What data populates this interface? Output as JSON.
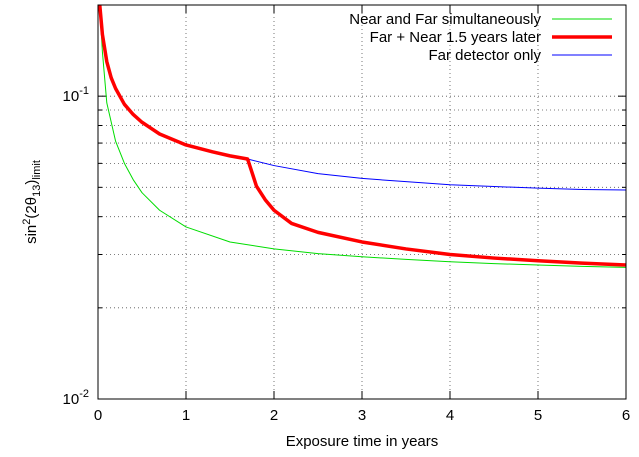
{
  "chart_data": {
    "type": "line",
    "title": "",
    "xlabel": "Exposure time in years",
    "ylabel": {
      "base": "sin",
      "sup1": "2",
      "mid": "(2θ",
      "sub1": "13",
      "close": ")",
      "sub2": "limit"
    },
    "xlim": [
      0,
      6
    ],
    "ylim": [
      0.01,
      0.2
    ],
    "yscale": "log",
    "grid": true,
    "legend_position": "top-right",
    "x_ticks": [
      "0",
      "1",
      "2",
      "3",
      "4",
      "5",
      "6"
    ],
    "y_ticks": [
      {
        "value": 0.1,
        "base": "10",
        "exp": "-1"
      },
      {
        "value": 0.01,
        "base": "10",
        "exp": "-2"
      }
    ],
    "series": [
      {
        "name": "Near and Far simultaneously",
        "color": "#00dd00",
        "points": [
          [
            0.02,
            0.2
          ],
          [
            0.05,
            0.14
          ],
          [
            0.1,
            0.095
          ],
          [
            0.2,
            0.071
          ],
          [
            0.3,
            0.06
          ],
          [
            0.4,
            0.053
          ],
          [
            0.5,
            0.048
          ],
          [
            0.7,
            0.042
          ],
          [
            1.0,
            0.037
          ],
          [
            1.5,
            0.033
          ],
          [
            2.0,
            0.0313
          ],
          [
            2.5,
            0.0302
          ],
          [
            3.0,
            0.0295
          ],
          [
            3.5,
            0.0289
          ],
          [
            4.0,
            0.0284
          ],
          [
            4.5,
            0.028
          ],
          [
            5.0,
            0.0277
          ],
          [
            5.5,
            0.0274
          ],
          [
            6.0,
            0.0272
          ]
        ]
      },
      {
        "name": "Far + Near 1.5 years later",
        "color": "#ff0000",
        "points": [
          [
            0.02,
            0.2
          ],
          [
            0.05,
            0.16
          ],
          [
            0.1,
            0.13
          ],
          [
            0.15,
            0.115
          ],
          [
            0.2,
            0.106
          ],
          [
            0.3,
            0.094
          ],
          [
            0.4,
            0.087
          ],
          [
            0.5,
            0.082
          ],
          [
            0.7,
            0.075
          ],
          [
            1.0,
            0.069
          ],
          [
            1.3,
            0.0655
          ],
          [
            1.5,
            0.0635
          ],
          [
            1.7,
            0.062
          ],
          [
            1.75,
            0.056
          ],
          [
            1.8,
            0.0505
          ],
          [
            1.9,
            0.0455
          ],
          [
            2.0,
            0.042
          ],
          [
            2.2,
            0.038
          ],
          [
            2.5,
            0.0355
          ],
          [
            3.0,
            0.033
          ],
          [
            3.5,
            0.0313
          ],
          [
            4.0,
            0.03
          ],
          [
            4.5,
            0.0292
          ],
          [
            5.0,
            0.0286
          ],
          [
            5.5,
            0.0281
          ],
          [
            6.0,
            0.0277
          ]
        ]
      },
      {
        "name": "Far detector only",
        "color": "#0000ff",
        "points": [
          [
            0.02,
            0.2
          ],
          [
            0.05,
            0.16
          ],
          [
            0.1,
            0.13
          ],
          [
            0.15,
            0.115
          ],
          [
            0.2,
            0.106
          ],
          [
            0.3,
            0.094
          ],
          [
            0.4,
            0.087
          ],
          [
            0.5,
            0.082
          ],
          [
            0.7,
            0.075
          ],
          [
            1.0,
            0.069
          ],
          [
            1.3,
            0.0655
          ],
          [
            1.5,
            0.0635
          ],
          [
            1.7,
            0.062
          ],
          [
            2.0,
            0.059
          ],
          [
            2.5,
            0.0555
          ],
          [
            3.0,
            0.0535
          ],
          [
            3.5,
            0.0522
          ],
          [
            4.0,
            0.051
          ],
          [
            4.5,
            0.0503
          ],
          [
            5.0,
            0.0497
          ],
          [
            5.5,
            0.0492
          ],
          [
            6.0,
            0.049
          ]
        ]
      }
    ]
  }
}
